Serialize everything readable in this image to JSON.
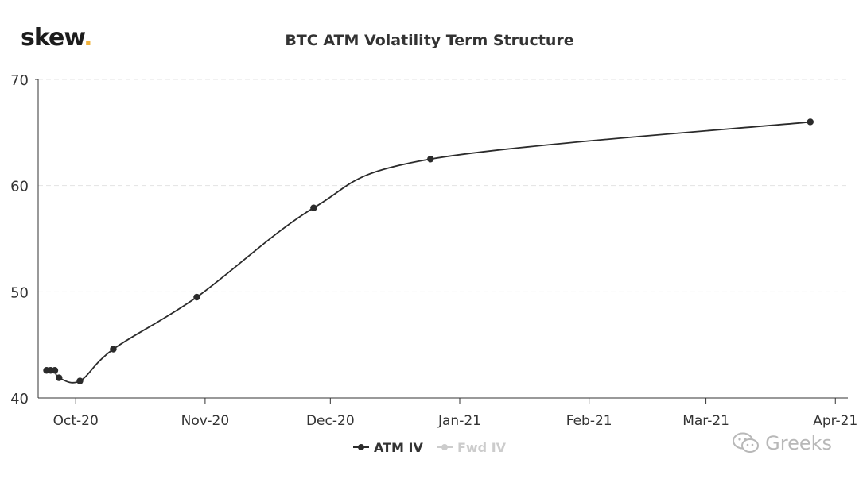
{
  "brand": {
    "name": "skew",
    "dot": "."
  },
  "chart_data": {
    "type": "line",
    "title": "BTC ATM Volatility Term Structure",
    "xlabel": "",
    "ylabel": "",
    "ylim": [
      40,
      70
    ],
    "yticks": [
      40,
      50,
      60,
      70
    ],
    "xlim": [
      "2020-09-22",
      "2021-04-04"
    ],
    "xticks": [
      {
        "date": "2020-10-01",
        "label": "Oct-20"
      },
      {
        "date": "2020-11-01",
        "label": "Nov-20"
      },
      {
        "date": "2020-12-01",
        "label": "Dec-20"
      },
      {
        "date": "2021-01-01",
        "label": "Jan-21"
      },
      {
        "date": "2021-02-01",
        "label": "Feb-21"
      },
      {
        "date": "2021-03-01",
        "label": "Mar-21"
      },
      {
        "date": "2021-04-01",
        "label": "Apr-21"
      }
    ],
    "grid": true,
    "legend_position": "bottom",
    "series": [
      {
        "name": "ATM IV",
        "color": "#2b2b2b",
        "visible": true,
        "points": [
          {
            "x": "2020-09-24",
            "y": 42.6
          },
          {
            "x": "2020-09-25",
            "y": 42.6
          },
          {
            "x": "2020-09-26",
            "y": 42.6
          },
          {
            "x": "2020-09-27",
            "y": 41.9
          },
          {
            "x": "2020-10-02",
            "y": 41.6
          },
          {
            "x": "2020-10-10",
            "y": 44.6
          },
          {
            "x": "2020-10-30",
            "y": 49.5
          },
          {
            "x": "2020-11-27",
            "y": 57.9
          },
          {
            "x": "2020-12-25",
            "y": 62.5
          },
          {
            "x": "2021-03-26",
            "y": 66.0
          }
        ]
      },
      {
        "name": "Fwd IV",
        "color": "#cccccc",
        "visible": false,
        "points": []
      }
    ]
  },
  "watermark": {
    "text": "Greeks"
  }
}
